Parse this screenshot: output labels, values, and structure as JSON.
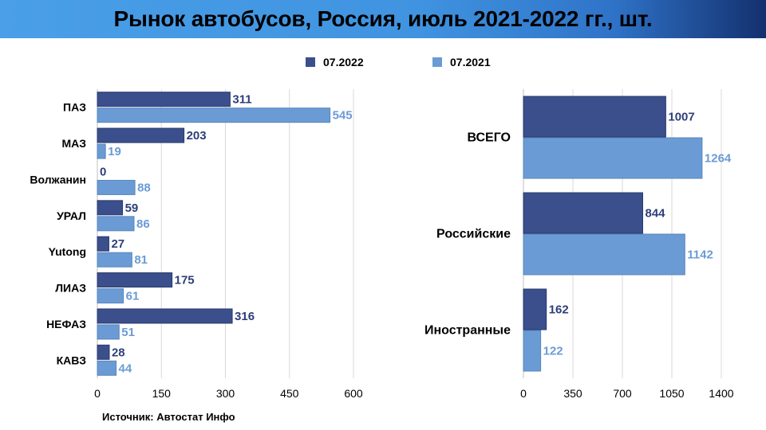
{
  "title": "Рынок автобусов, Россия, июль 2021-2022 гг., шт.",
  "legend": [
    {
      "label": "07.2022",
      "color": "#3a4f8c"
    },
    {
      "label": "07.2021",
      "color": "#6a9bd4"
    }
  ],
  "source": "Источник: Автостат Инфо",
  "colors": {
    "series_2022": "#3a4f8c",
    "series_2021": "#6a9bd4",
    "label_2022": "#2e3f7a",
    "label_2021": "#6a9bd4"
  },
  "chart_data": [
    {
      "type": "bar",
      "orientation": "horizontal",
      "categories": [
        "ПАЗ",
        "МАЗ",
        "Волжанин",
        "УРАЛ",
        "Yutong",
        "ЛИАЗ",
        "НЕФАЗ",
        "КАВЗ"
      ],
      "series": [
        {
          "name": "07.2022",
          "values": [
            311,
            203,
            0,
            59,
            27,
            175,
            316,
            28
          ]
        },
        {
          "name": "07.2021",
          "values": [
            545,
            19,
            88,
            86,
            81,
            61,
            51,
            44
          ]
        }
      ],
      "xlim": [
        0,
        600
      ],
      "xticks": [
        "0",
        "150",
        "300",
        "450",
        "600"
      ],
      "grid": true
    },
    {
      "type": "bar",
      "orientation": "horizontal",
      "categories": [
        "ВСЕГО",
        "Российские",
        "Иностранные"
      ],
      "series": [
        {
          "name": "07.2022",
          "values": [
            1007,
            844,
            162
          ]
        },
        {
          "name": "07.2021",
          "values": [
            1264,
            1142,
            122
          ]
        }
      ],
      "xlim": [
        0,
        1400
      ],
      "xticks": [
        "0",
        "350",
        "700",
        "1050",
        "1400"
      ],
      "grid": true
    }
  ]
}
